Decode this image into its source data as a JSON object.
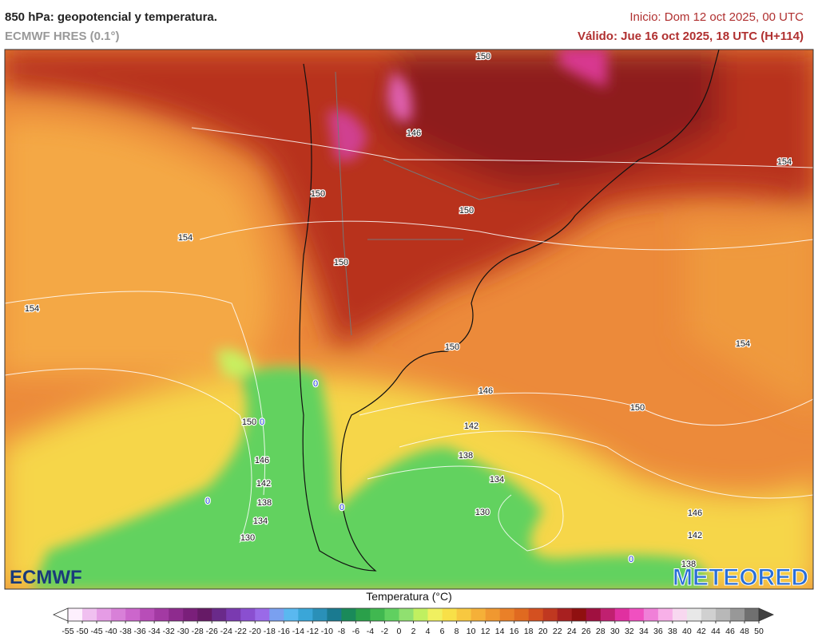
{
  "header": {
    "title": "850 hPa: geopotencial y temperatura.",
    "model": "ECMWF HRES (0.1°)",
    "init": "Inicio: Dom 12 oct 2025, 00 UTC",
    "valid": "Válido: Jue 16 oct 2025, 18 UTC (H+114)"
  },
  "map": {
    "contour_labels": [
      "150",
      "146",
      "150",
      "154",
      "154",
      "154",
      "150",
      "150",
      "154",
      "150",
      "146",
      "150",
      "150",
      "142",
      "138",
      "134",
      "130",
      "146",
      "142",
      "138",
      "134",
      "130",
      "146",
      "142",
      "138"
    ],
    "freezing_labels": [
      "0",
      "0",
      "0",
      "0",
      "0"
    ]
  },
  "logos": {
    "left": "ECMWF",
    "right": "METEORED"
  },
  "colorbar": {
    "title": "Temperatura (°C)",
    "ticks": [
      -55,
      -50,
      -45,
      -40,
      -38,
      -36,
      -34,
      -32,
      -30,
      -28,
      -26,
      -24,
      -22,
      -20,
      -18,
      -16,
      -14,
      -12,
      -10,
      -8,
      -6,
      -4,
      -2,
      0,
      2,
      4,
      6,
      8,
      10,
      12,
      14,
      16,
      18,
      20,
      22,
      24,
      26,
      28,
      30,
      32,
      34,
      36,
      38,
      40,
      42,
      44,
      46,
      48,
      50
    ],
    "colors": [
      "#fdf0fd",
      "#f0c0f0",
      "#e59ce5",
      "#d880d8",
      "#cc66cc",
      "#b84db8",
      "#a33aa3",
      "#8e2b8e",
      "#7a1f7a",
      "#661a66",
      "#6a2a8a",
      "#7a3ab0",
      "#8a4fd0",
      "#9a6ae8",
      "#7aa0f0",
      "#5ab8f0",
      "#3aa6d8",
      "#2a90b8",
      "#1a7a90",
      "#1a8a5a",
      "#2aa04a",
      "#40b850",
      "#60d060",
      "#90e070",
      "#c0f060",
      "#f0f060",
      "#f8e048",
      "#f8c840",
      "#f5b038",
      "#f09830",
      "#ea8028",
      "#e06a20",
      "#d45020",
      "#c03820",
      "#a82020",
      "#901010",
      "#a01040",
      "#c02070",
      "#e030a0",
      "#f050c0",
      "#f080d8",
      "#f8b0e8",
      "#f8d8f0",
      "#e8e8e8",
      "#d0d0d0",
      "#b8b8b8",
      "#989898",
      "#707070"
    ],
    "low_color": "#ffffff",
    "high_color": "#404040"
  }
}
